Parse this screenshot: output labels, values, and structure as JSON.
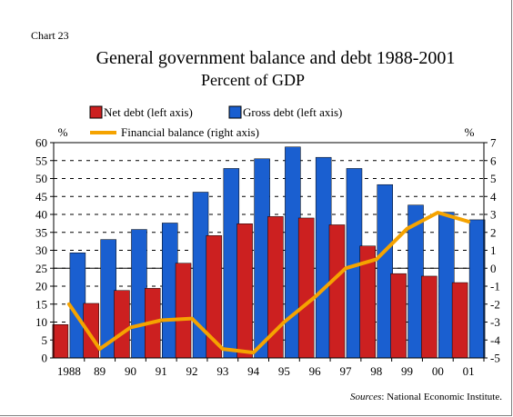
{
  "chart_label": "Chart 23",
  "source_prefix": "Sources",
  "source_text": ": National Economic Institute.",
  "colors": {
    "net_debt": "#cc2020",
    "gross_debt": "#1a5fd0",
    "balance": "#f5a300",
    "gridline": "#000000",
    "background": "#ffffff"
  },
  "chart_data": {
    "type": "bar",
    "title": "General government balance and debt 1988-2001",
    "subtitle": "Percent of GDP",
    "left_axis_unit": "%",
    "right_axis_unit": "%",
    "categories": [
      "1988",
      "89",
      "90",
      "91",
      "92",
      "93",
      "94",
      "95",
      "96",
      "97",
      "98",
      "99",
      "00",
      "01"
    ],
    "series": [
      {
        "name": "Net debt (left axis)",
        "type": "bar",
        "axis": "left",
        "values": [
          9.3,
          15.2,
          18.8,
          19.4,
          26.4,
          34.1,
          37.4,
          39.4,
          39.0,
          37.1,
          31.2,
          23.5,
          22.8,
          21.0
        ]
      },
      {
        "name": "Gross debt (left axis)",
        "type": "bar",
        "axis": "left",
        "values": [
          29.3,
          33.0,
          35.8,
          37.6,
          46.2,
          52.8,
          55.5,
          58.8,
          55.9,
          52.8,
          48.3,
          42.6,
          40.6,
          38.5
        ]
      },
      {
        "name": "Financial balance (right axis)",
        "type": "line",
        "axis": "right",
        "values": [
          -2.0,
          -4.5,
          -3.3,
          -2.9,
          -2.8,
          -4.5,
          -4.7,
          -3.0,
          -1.6,
          0.0,
          0.5,
          2.2,
          3.1,
          2.6
        ]
      }
    ],
    "left_ylim": [
      0,
      60
    ],
    "left_ticks": [
      0,
      5,
      10,
      15,
      20,
      25,
      30,
      35,
      40,
      45,
      50,
      55,
      60
    ],
    "right_ylim": [
      -5,
      7
    ],
    "right_ticks": [
      -5,
      -4,
      -3,
      -2,
      -1,
      0,
      1,
      2,
      3,
      4,
      5,
      6,
      7
    ],
    "grid": "dashed horizontal",
    "legend_position": "top"
  }
}
